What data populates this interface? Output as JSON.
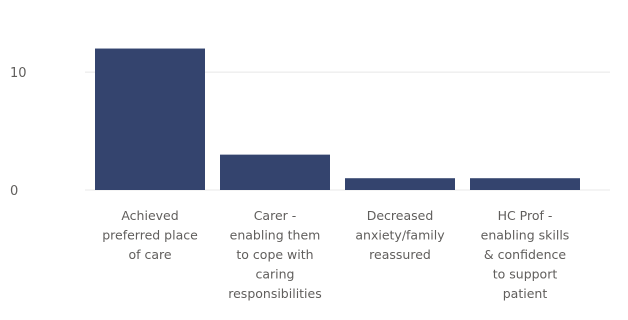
{
  "chart_data": {
    "type": "bar",
    "title": "",
    "xlabel": "",
    "ylabel": "",
    "categories": [
      [
        "Achieved",
        "preferred place",
        "of care"
      ],
      [
        "Carer -",
        "enabling them",
        "to cope with",
        "caring",
        "responsibilities"
      ],
      [
        "Decreased",
        "anxiety/family",
        "reassured"
      ],
      [
        "HC Prof -",
        "enabling skills",
        "& confidence",
        "to support",
        "patient"
      ]
    ],
    "values": [
      12,
      3,
      1,
      1
    ],
    "ylim": [
      0,
      12.3
    ],
    "yticks": [
      "10",
      "0"
    ],
    "ytick_values": [
      10,
      0
    ],
    "grid": true,
    "bar_color": "#34446e",
    "gridline_color": "#e8e8e8",
    "label_color": "#605e5c"
  }
}
